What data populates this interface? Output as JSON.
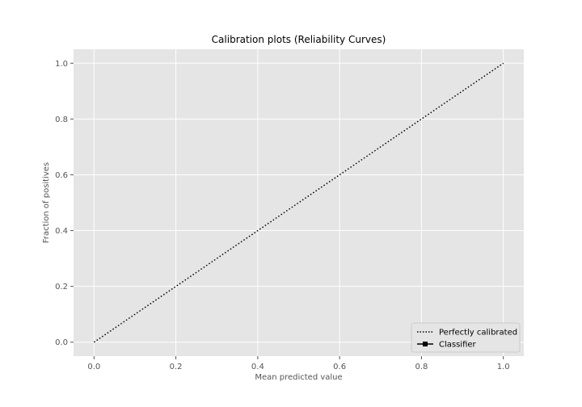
{
  "chart_data": {
    "type": "line",
    "title": "Calibration plots (Reliability Curves)",
    "xlabel": "Mean predicted value",
    "ylabel": "Fraction of positives",
    "xlim": [
      -0.05,
      1.05
    ],
    "ylim": [
      -0.05,
      1.05
    ],
    "xticks": [
      "0.0",
      "0.2",
      "0.4",
      "0.6",
      "0.8",
      "1.0"
    ],
    "yticks": [
      "0.0",
      "0.2",
      "0.4",
      "0.6",
      "0.8",
      "1.0"
    ],
    "grid": true,
    "legend_position": "lower-right",
    "series": [
      {
        "name": "Perfectly calibrated",
        "x": [
          0,
          1
        ],
        "y": [
          0,
          1
        ],
        "style": "dotted",
        "color": "#000000"
      },
      {
        "name": "Classifier",
        "x": [],
        "y": [],
        "style": "solid-square-marker",
        "color": "#000000"
      }
    ],
    "colors": {
      "plot_background": "#e5e5e5",
      "grid": "#ffffff",
      "legend_background": "#e5e5e5",
      "legend_border": "#cccccc"
    }
  }
}
